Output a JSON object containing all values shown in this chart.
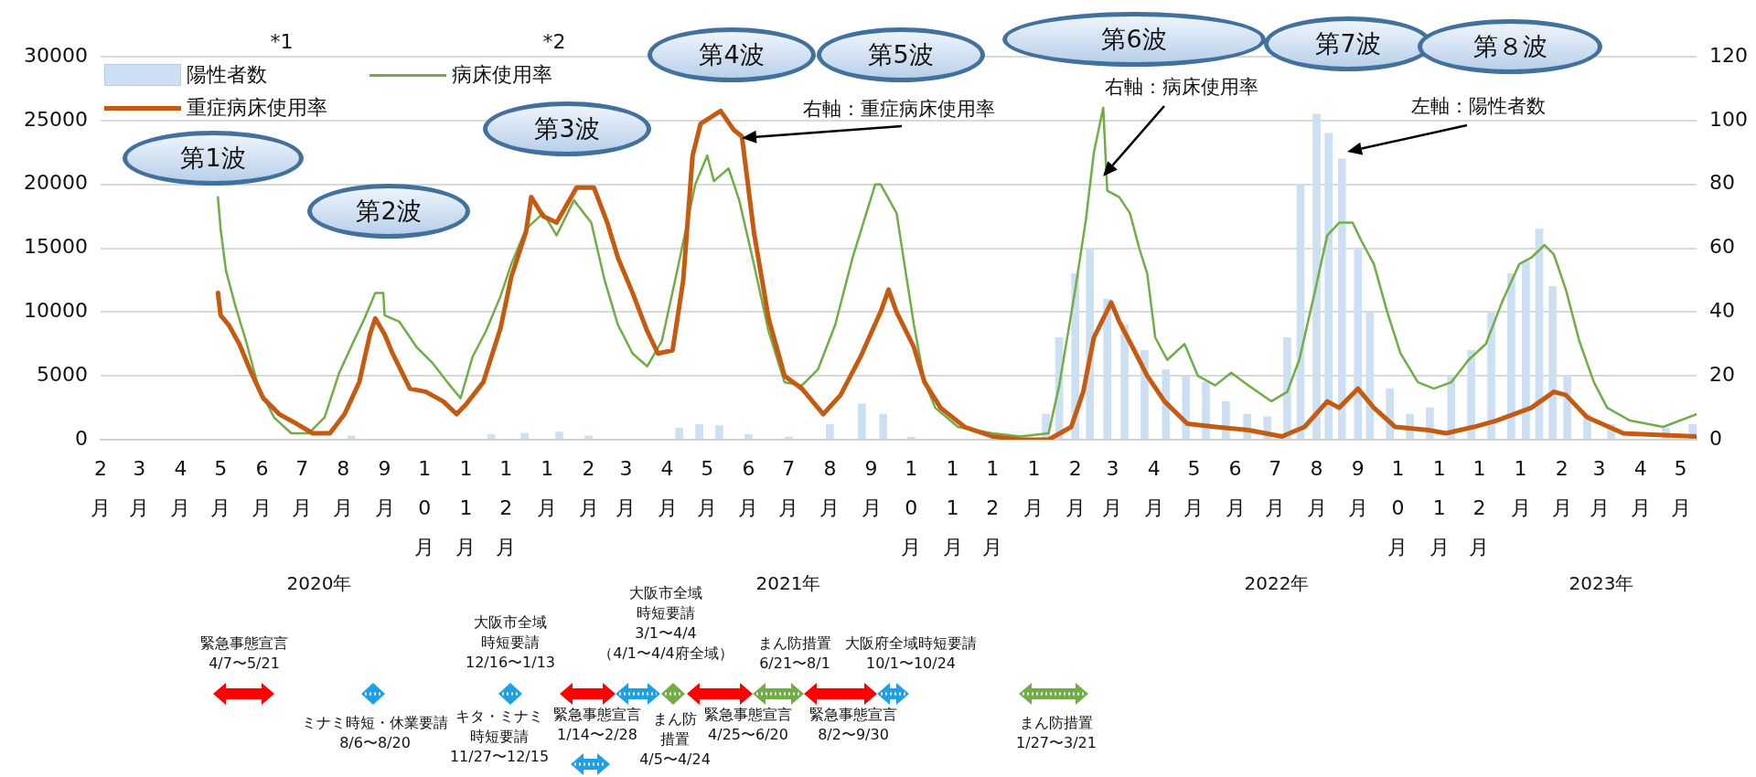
{
  "chart_data": {
    "type": "line",
    "xlim": [
      "2020-02-01",
      "2023-05-13"
    ],
    "xticks": [
      {
        "value": "2020-02-01",
        "label": "2月"
      },
      {
        "value": "2020-03-01",
        "label": "3月"
      },
      {
        "value": "2020-04-01",
        "label": "4月"
      },
      {
        "value": "2020-05-01",
        "label": "5月"
      },
      {
        "value": "2020-06-01",
        "label": "6月"
      },
      {
        "value": "2020-07-01",
        "label": "7月"
      },
      {
        "value": "2020-08-01",
        "label": "8月"
      },
      {
        "value": "2020-09-01",
        "label": "9月"
      },
      {
        "value": "2020-10-01",
        "label": "10月"
      },
      {
        "value": "2020-11-01",
        "label": "11月"
      },
      {
        "value": "2020-12-01",
        "label": "12月"
      },
      {
        "value": "2021-01-01",
        "label": "1月"
      },
      {
        "value": "2021-02-01",
        "label": "2月"
      },
      {
        "value": "2021-03-01",
        "label": "3月"
      },
      {
        "value": "2021-04-01",
        "label": "4月"
      },
      {
        "value": "2021-05-01",
        "label": "5月"
      },
      {
        "value": "2021-06-01",
        "label": "6月"
      },
      {
        "value": "2021-07-01",
        "label": "7月"
      },
      {
        "value": "2021-08-01",
        "label": "8月"
      },
      {
        "value": "2021-09-01",
        "label": "9月"
      },
      {
        "value": "2021-10-01",
        "label": "10月"
      },
      {
        "value": "2021-11-01",
        "label": "11月"
      },
      {
        "value": "2021-12-01",
        "label": "12月"
      },
      {
        "value": "2022-01-01",
        "label": "1月"
      },
      {
        "value": "2022-02-01",
        "label": "2月"
      },
      {
        "value": "2022-03-01",
        "label": "3月"
      },
      {
        "value": "2022-04-01",
        "label": "4月"
      },
      {
        "value": "2022-05-01",
        "label": "5月"
      },
      {
        "value": "2022-06-01",
        "label": "6月"
      },
      {
        "value": "2022-07-01",
        "label": "7月"
      },
      {
        "value": "2022-08-01",
        "label": "8月"
      },
      {
        "value": "2022-09-01",
        "label": "9月"
      },
      {
        "value": "2022-10-01",
        "label": "10月"
      },
      {
        "value": "2022-11-01",
        "label": "11月"
      },
      {
        "value": "2022-12-01",
        "label": "12月"
      },
      {
        "value": "2023-01-01",
        "label": "1月"
      },
      {
        "value": "2023-02-01",
        "label": "2月"
      },
      {
        "value": "2023-03-01",
        "label": "3月"
      },
      {
        "value": "2023-04-01",
        "label": "4月"
      },
      {
        "value": "2023-05-01",
        "label": "5月"
      }
    ],
    "ylim": [
      0,
      30000
    ],
    "yticks": [
      0,
      5000,
      10000,
      15000,
      20000,
      25000,
      30000
    ],
    "y2lim": [
      0,
      120
    ],
    "y2ticks": [
      0,
      20,
      40,
      60,
      80,
      100,
      120
    ],
    "grid": "y",
    "legend": "top left",
    "marker": "none",
    "series": [
      {
        "name": "陽性者数",
        "type": "bar",
        "color": "#cddff2",
        "x": [
          "2020-03-15",
          "2020-04-10",
          "2020-05-01",
          "2020-06-15",
          "2020-07-15",
          "2020-08-07",
          "2020-09-01",
          "2020-10-15",
          "2020-11-20",
          "2020-12-15",
          "2021-01-10",
          "2021-02-01",
          "2021-03-10",
          "2021-04-10",
          "2021-04-25",
          "2021-05-10",
          "2021-06-01",
          "2021-07-01",
          "2021-08-01",
          "2021-08-25",
          "2021-09-10",
          "2021-10-01",
          "2021-11-01",
          "2021-12-15",
          "2022-01-10",
          "2022-01-20",
          "2022-02-01",
          "2022-02-12",
          "2022-02-25",
          "2022-03-10",
          "2022-03-25",
          "2022-04-10",
          "2022-04-25",
          "2022-05-10",
          "2022-05-25",
          "2022-06-10",
          "2022-06-25",
          "2022-07-10",
          "2022-07-20",
          "2022-08-01",
          "2022-08-10",
          "2022-08-20",
          "2022-09-01",
          "2022-09-10",
          "2022-09-25",
          "2022-10-10",
          "2022-10-25",
          "2022-11-10",
          "2022-11-25",
          "2022-12-10",
          "2022-12-25",
          "2023-01-05",
          "2023-01-15",
          "2023-01-25",
          "2023-02-05",
          "2023-02-20",
          "2023-03-10",
          "2023-04-01",
          "2023-04-20",
          "2023-05-10"
        ],
        "values": [
          0,
          null,
          0,
          0,
          0,
          300,
          null,
          null,
          400,
          500,
          600,
          300,
          null,
          900,
          1200,
          1100,
          400,
          200,
          1200,
          2800,
          2000,
          200,
          0,
          0,
          2000,
          8000,
          13000,
          15000,
          11000,
          9000,
          7000,
          5500,
          5000,
          4500,
          3000,
          2000,
          1800,
          8000,
          20000,
          25500,
          24000,
          22000,
          15000,
          10000,
          4000,
          2000,
          2500,
          5000,
          7000,
          10000,
          13000,
          14000,
          16500,
          12000,
          5000,
          2000,
          1200,
          null,
          900,
          1200
        ]
      },
      {
        "name": "病床使用率",
        "axis": "y2",
        "color": "#70ad47",
        "x": [
          "2020-04-29",
          "2020-05-01",
          "2020-05-05",
          "2020-05-12",
          "2020-05-20",
          "2020-05-29",
          "2020-06-10",
          "2020-06-23",
          "2020-07-06",
          "2020-07-18",
          "2020-07-29",
          "2020-08-09",
          "2020-08-17",
          "2020-08-25",
          "2020-08-31",
          "2020-09-01",
          "2020-09-12",
          "2020-09-25",
          "2020-10-07",
          "2020-10-20",
          "2020-10-28",
          "2020-11-06",
          "2020-11-16",
          "2020-11-27",
          "2020-12-05",
          "2020-12-16",
          "2020-12-29",
          "2021-01-08",
          "2021-01-21",
          "2021-02-03",
          "2021-02-13",
          "2021-02-23",
          "2021-03-06",
          "2021-03-17",
          "2021-03-28",
          "2021-04-09",
          "2021-04-22",
          "2021-05-01",
          "2021-05-06",
          "2021-05-17",
          "2021-05-25",
          "2021-06-05",
          "2021-06-16",
          "2021-06-28",
          "2021-07-11",
          "2021-07-23",
          "2021-08-05",
          "2021-08-18",
          "2021-09-04",
          "2021-09-08",
          "2021-09-20",
          "2021-09-27",
          "2021-10-03",
          "2021-10-11",
          "2021-10-19",
          "2021-11-05",
          "2021-12-01",
          "2021-12-22",
          "2022-01-12",
          "2022-01-20",
          "2022-02-01",
          "2022-02-09",
          "2022-02-15",
          "2022-02-22",
          "2022-02-25",
          "2022-03-06",
          "2022-03-14",
          "2022-03-21",
          "2022-03-27",
          "2022-04-02",
          "2022-04-11",
          "2022-04-24",
          "2022-05-04",
          "2022-05-17",
          "2022-05-29",
          "2022-06-11",
          "2022-06-28",
          "2022-07-10",
          "2022-07-19",
          "2022-07-30",
          "2022-08-09",
          "2022-08-18",
          "2022-08-28",
          "2022-09-04",
          "2022-09-13",
          "2022-09-23",
          "2022-10-03",
          "2022-10-16",
          "2022-10-28",
          "2022-11-10",
          "2022-11-23",
          "2022-12-06",
          "2022-12-18",
          "2022-12-31",
          "2023-01-09",
          "2023-01-19",
          "2023-01-26",
          "2023-02-04",
          "2023-02-14",
          "2023-02-25",
          "2023-03-07",
          "2023-03-24",
          "2023-04-18",
          "2023-05-13"
        ],
        "values": [
          76,
          66,
          53,
          42,
          31,
          17,
          7,
          2,
          2,
          7,
          21,
          31,
          38,
          46,
          46,
          39,
          37,
          29,
          24,
          17,
          13,
          26,
          34,
          45,
          55,
          66,
          71,
          64,
          75,
          68,
          50,
          36,
          27,
          23,
          31,
          54,
          80,
          89,
          81,
          85,
          75,
          55,
          34,
          18,
          17,
          22,
          36,
          57,
          80,
          80,
          71,
          52,
          36,
          18,
          10,
          4,
          2,
          1,
          2,
          17,
          47,
          69,
          90,
          104,
          78,
          76,
          71,
          60,
          52,
          32,
          25,
          30,
          20,
          17,
          21,
          17,
          12,
          15,
          25,
          45,
          64,
          68,
          68,
          62,
          55,
          40,
          27,
          18,
          16,
          18,
          25,
          30,
          43,
          55,
          57,
          61,
          58,
          47,
          31,
          18,
          10,
          6,
          4,
          8
        ]
      },
      {
        "name": "重症病床使用率",
        "axis": "y2",
        "color": "#c55a11",
        "x": [
          "2020-04-29",
          "2020-05-01",
          "2020-05-07",
          "2020-05-15",
          "2020-05-24",
          "2020-06-02",
          "2020-06-14",
          "2020-06-27",
          "2020-07-09",
          "2020-07-22",
          "2020-08-02",
          "2020-08-13",
          "2020-08-21",
          "2020-08-25",
          "2020-09-01",
          "2020-09-07",
          "2020-09-20",
          "2020-10-02",
          "2020-10-15",
          "2020-10-25",
          "2020-11-01",
          "2020-11-14",
          "2020-11-27",
          "2020-12-05",
          "2020-12-16",
          "2020-12-20",
          "2020-12-29",
          "2021-01-08",
          "2021-01-23",
          "2021-02-05",
          "2021-02-15",
          "2021-02-23",
          "2021-03-06",
          "2021-03-17",
          "2021-03-25",
          "2021-04-05",
          "2021-04-13",
          "2021-04-20",
          "2021-04-26",
          "2021-05-11",
          "2021-05-21",
          "2021-05-27",
          "2021-06-05",
          "2021-06-16",
          "2021-06-28",
          "2021-07-11",
          "2021-07-27",
          "2021-08-09",
          "2021-08-24",
          "2021-09-08",
          "2021-09-14",
          "2021-09-20",
          "2021-10-03",
          "2021-10-11",
          "2021-10-23",
          "2021-11-10",
          "2021-12-01",
          "2021-12-22",
          "2022-01-12",
          "2022-01-29",
          "2022-02-07",
          "2022-02-15",
          "2022-02-28",
          "2022-03-06",
          "2022-03-16",
          "2022-03-27",
          "2022-04-09",
          "2022-04-26",
          "2022-05-17",
          "2022-06-11",
          "2022-07-06",
          "2022-07-23",
          "2022-08-09",
          "2022-08-18",
          "2022-09-01",
          "2022-09-13",
          "2022-09-29",
          "2022-10-24",
          "2022-11-06",
          "2022-11-27",
          "2022-12-14",
          "2023-01-09",
          "2023-01-26",
          "2023-02-04",
          "2023-02-20",
          "2023-03-19",
          "2023-05-13"
        ],
        "values": [
          46,
          39,
          36,
          30,
          21,
          13,
          8,
          5,
          2,
          2,
          8,
          18,
          33,
          38,
          33,
          27,
          16,
          15,
          12,
          8,
          11,
          18,
          35,
          51,
          65,
          76,
          70,
          68,
          79,
          79,
          68,
          57,
          46,
          34,
          27,
          28,
          50,
          89,
          99,
          103,
          97,
          95,
          65,
          38,
          20,
          16,
          8,
          14,
          26,
          40,
          47,
          40,
          29,
          18,
          10,
          4,
          1,
          0,
          0,
          4,
          15,
          32,
          43,
          37,
          29,
          20,
          12,
          5,
          4,
          3,
          1,
          4,
          12,
          10,
          16,
          10,
          4,
          3,
          2,
          4,
          6,
          10,
          15,
          14,
          7,
          2,
          1
        ]
      }
    ],
    "annotations": [
      "第1波",
      "第2波",
      "第3波",
      "第4波",
      "第5波",
      "第6波",
      "第7波",
      "第８波",
      "*1",
      "*2",
      "右軸：重症病床使用率",
      "右軸：病床使用率",
      "左軸：陽性者数",
      "2020年",
      "2021年",
      "2022年",
      "2023年",
      "緊急事態宣言\n4/7〜5/21",
      "ミナミ時短・休業要請\n8/6〜8/20",
      "大阪市全域時短要請\n12/16〜1/13",
      "キタ・ミナミ時短要請\n11/27〜12/15",
      "緊急事態宣言\n1/14〜2/28",
      "大阪市全域時短要請\n3/1〜4/4\n（4/1〜4/4府全域）",
      "まん防措置\n4/5〜4/24",
      "緊急事態宣言\n4/25〜6/20",
      "まん防措置\n6/21〜8/1",
      "緊急事態宣言\n8/2〜9/30",
      "大阪府全域時短要請\n10/1〜10/24",
      "まん防措置\n1/27〜3/21"
    ]
  }
}
